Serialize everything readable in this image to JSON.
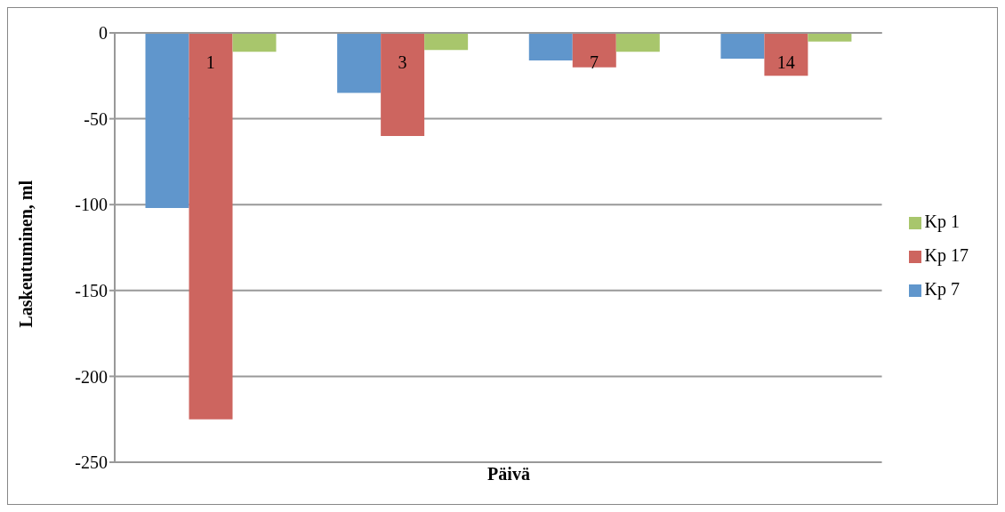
{
  "chart_data": {
    "type": "bar",
    "xlabel": "Päivä",
    "ylabel": "Laskeutuminen, ml",
    "categories": [
      "1",
      "3",
      "7",
      "14"
    ],
    "series": [
      {
        "name": "Kp 7",
        "color": "#6096cc",
        "values": [
          -102,
          -35,
          -16,
          -15
        ]
      },
      {
        "name": "Kp 17",
        "color": "#cd655f",
        "values": [
          -225,
          -60,
          -20,
          -25
        ]
      },
      {
        "name": "Kp 1",
        "color": "#a8c66c",
        "values": [
          -11,
          -10,
          -11,
          -5
        ]
      }
    ],
    "ylim": [
      -250,
      0
    ],
    "yticks": [
      0,
      -50,
      -100,
      -150,
      -200,
      -250
    ],
    "grid": "y",
    "legend": "right"
  }
}
